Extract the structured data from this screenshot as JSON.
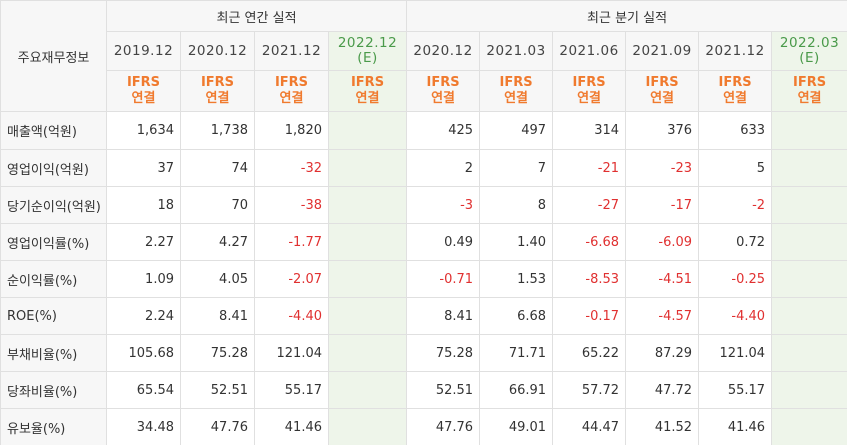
{
  "header": {
    "row_label": "주요재무정보",
    "annual_group": "최근 연간 실적",
    "quarter_group": "최근 분기 실적",
    "annual_periods": [
      {
        "main": "2019.12",
        "est": ""
      },
      {
        "main": "2020.12",
        "est": ""
      },
      {
        "main": "2021.12",
        "est": ""
      },
      {
        "main": "2022.12",
        "est": "(E)"
      }
    ],
    "quarter_periods": [
      {
        "main": "2020.12",
        "est": ""
      },
      {
        "main": "2021.03",
        "est": ""
      },
      {
        "main": "2021.06",
        "est": ""
      },
      {
        "main": "2021.09",
        "est": ""
      },
      {
        "main": "2021.12",
        "est": ""
      },
      {
        "main": "2022.03",
        "est": "(E)"
      }
    ],
    "basis_top": "IFRS",
    "basis_bottom": "연결"
  },
  "rows": [
    {
      "label": "매출액(억원)",
      "annual": [
        "1,634",
        "1,738",
        "1,820",
        ""
      ],
      "quarter": [
        "425",
        "497",
        "314",
        "376",
        "633",
        ""
      ]
    },
    {
      "label": "영업이익(억원)",
      "annual": [
        "37",
        "74",
        "-32",
        ""
      ],
      "quarter": [
        "2",
        "7",
        "-21",
        "-23",
        "5",
        ""
      ]
    },
    {
      "label": "당기순이익(억원)",
      "annual": [
        "18",
        "70",
        "-38",
        ""
      ],
      "quarter": [
        "-3",
        "8",
        "-27",
        "-17",
        "-2",
        ""
      ]
    },
    {
      "label": "영업이익률(%)",
      "annual": [
        "2.27",
        "4.27",
        "-1.77",
        ""
      ],
      "quarter": [
        "0.49",
        "1.40",
        "-6.68",
        "-6.09",
        "0.72",
        ""
      ]
    },
    {
      "label": "순이익률(%)",
      "annual": [
        "1.09",
        "4.05",
        "-2.07",
        ""
      ],
      "quarter": [
        "-0.71",
        "1.53",
        "-8.53",
        "-4.51",
        "-0.25",
        ""
      ]
    },
    {
      "label": "ROE(%)",
      "annual": [
        "2.24",
        "8.41",
        "-4.40",
        ""
      ],
      "quarter": [
        "8.41",
        "6.68",
        "-0.17",
        "-4.57",
        "-4.40",
        ""
      ]
    },
    {
      "label": "부채비율(%)",
      "annual": [
        "105.68",
        "75.28",
        "121.04",
        ""
      ],
      "quarter": [
        "75.28",
        "71.71",
        "65.22",
        "87.29",
        "121.04",
        ""
      ]
    },
    {
      "label": "당좌비율(%)",
      "annual": [
        "65.54",
        "52.51",
        "55.17",
        ""
      ],
      "quarter": [
        "52.51",
        "66.91",
        "57.72",
        "47.72",
        "55.17",
        ""
      ]
    },
    {
      "label": "유보율(%)",
      "annual": [
        "34.48",
        "47.76",
        "41.46",
        ""
      ],
      "quarter": [
        "47.76",
        "49.01",
        "44.47",
        "41.52",
        "41.46",
        ""
      ]
    }
  ],
  "colors": {
    "negative": "#e03030",
    "basis": "#f07a2e",
    "estimate_bg": "#eef5ea"
  }
}
